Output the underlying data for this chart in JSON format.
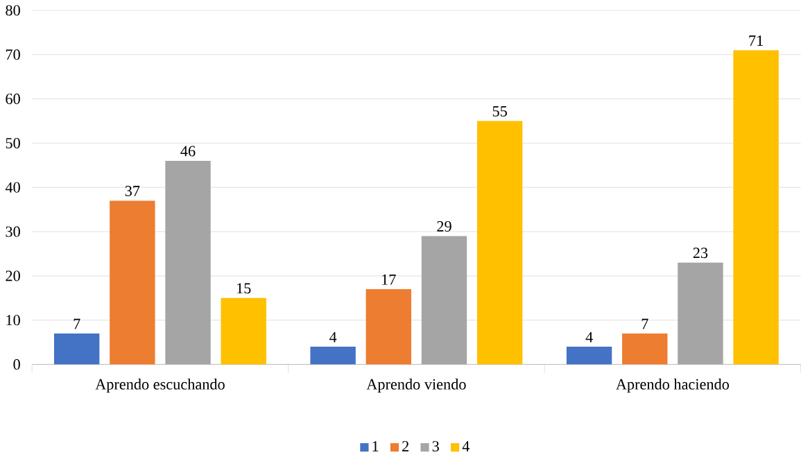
{
  "chart_data": {
    "type": "bar",
    "categories": [
      "Aprendo escuchando",
      "Aprendo viendo",
      "Aprendo haciendo"
    ],
    "series": [
      {
        "name": "1",
        "color": "#4472c4",
        "values": [
          7,
          4,
          4
        ]
      },
      {
        "name": "2",
        "color": "#ed7d31",
        "values": [
          37,
          17,
          7
        ]
      },
      {
        "name": "3",
        "color": "#a5a5a5",
        "values": [
          46,
          29,
          23
        ]
      },
      {
        "name": "4",
        "color": "#ffc000",
        "values": [
          15,
          55,
          71
        ]
      }
    ],
    "ylim": [
      0,
      80
    ],
    "yticks": [
      0,
      10,
      20,
      30,
      40,
      50,
      60,
      70,
      80
    ],
    "grid": "y",
    "legend": "bottom",
    "data_labels": true
  }
}
